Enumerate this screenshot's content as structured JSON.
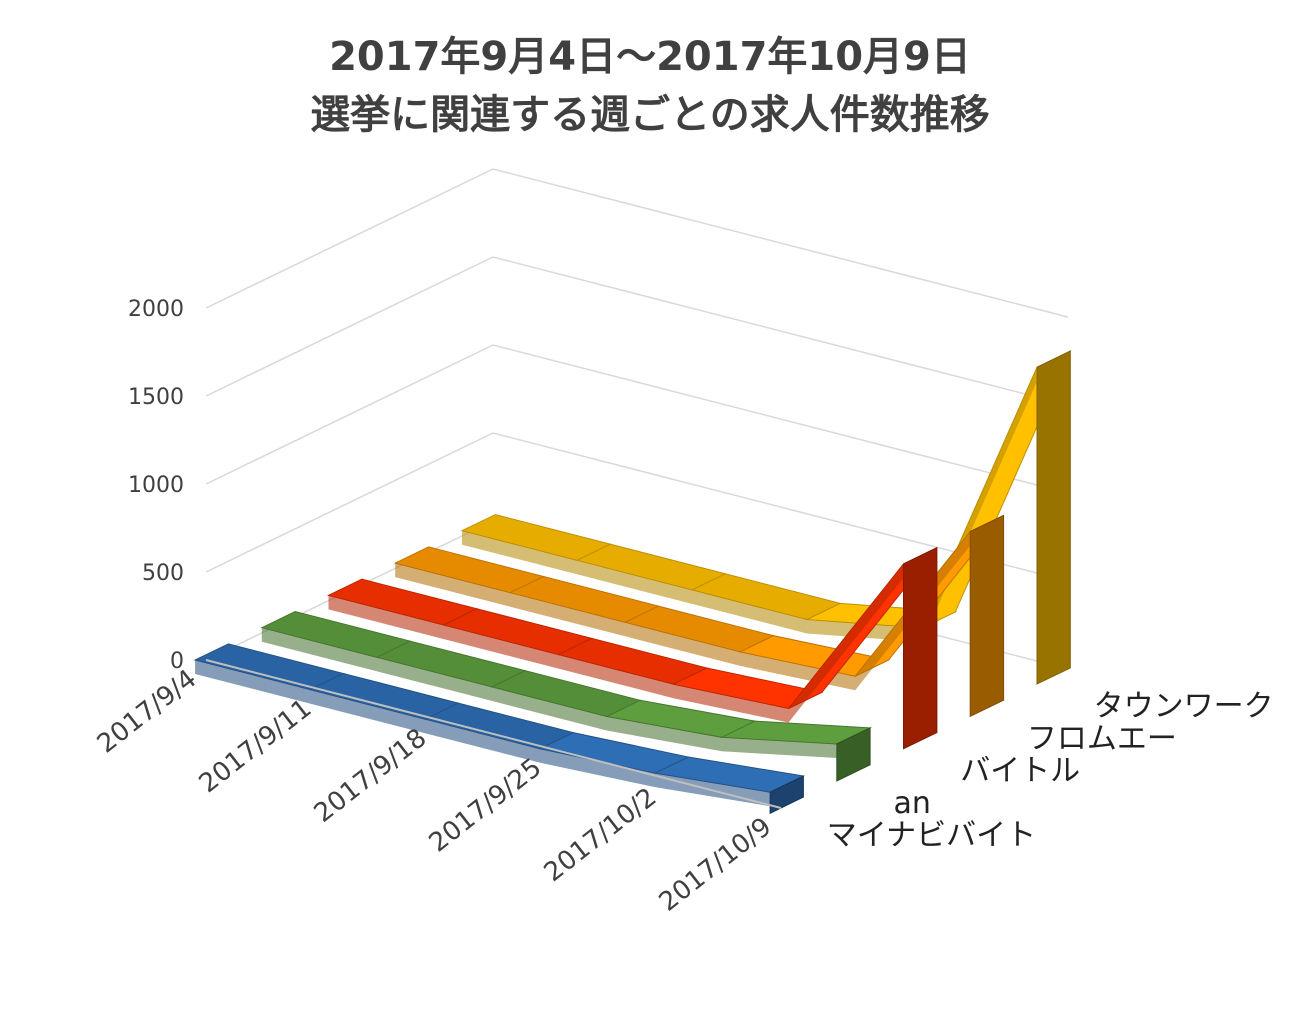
{
  "chart_data": {
    "type": "line",
    "subtype": "3d-ribbon",
    "title": [
      "2017年9月4日～2017年10月9日",
      "選挙に関連する週ごとの求人件数推移"
    ],
    "xlabel": "",
    "ylabel": "",
    "categories": [
      "2017/9/4",
      "2017/9/11",
      "2017/9/18",
      "2017/9/25",
      "2017/10/2",
      "2017/10/9"
    ],
    "y_ticks": [
      "0",
      "500",
      "1000",
      "1500",
      "2000"
    ],
    "ylim": [
      0,
      2000
    ],
    "grid": true,
    "legend": "none (series labeled on depth axis)",
    "series": [
      {
        "name": "マイナビバイト",
        "values": [
          30,
          30,
          30,
          30,
          60,
          120
        ],
        "color": "#2e6eb5"
      },
      {
        "name": "an",
        "values": [
          30,
          30,
          30,
          30,
          80,
          210
        ],
        "color": "#5e9e3e"
      },
      {
        "name": "バイトル",
        "values": [
          30,
          30,
          30,
          30,
          60,
          1050
        ],
        "color": "#ff3300"
      },
      {
        "name": "フロムエー",
        "values": [
          30,
          30,
          30,
          30,
          60,
          1050
        ],
        "color": "#ff9a00"
      },
      {
        "name": "タウンワーク",
        "values": [
          30,
          30,
          30,
          30,
          150,
          1800
        ],
        "color": "#ffc000"
      }
    ]
  }
}
